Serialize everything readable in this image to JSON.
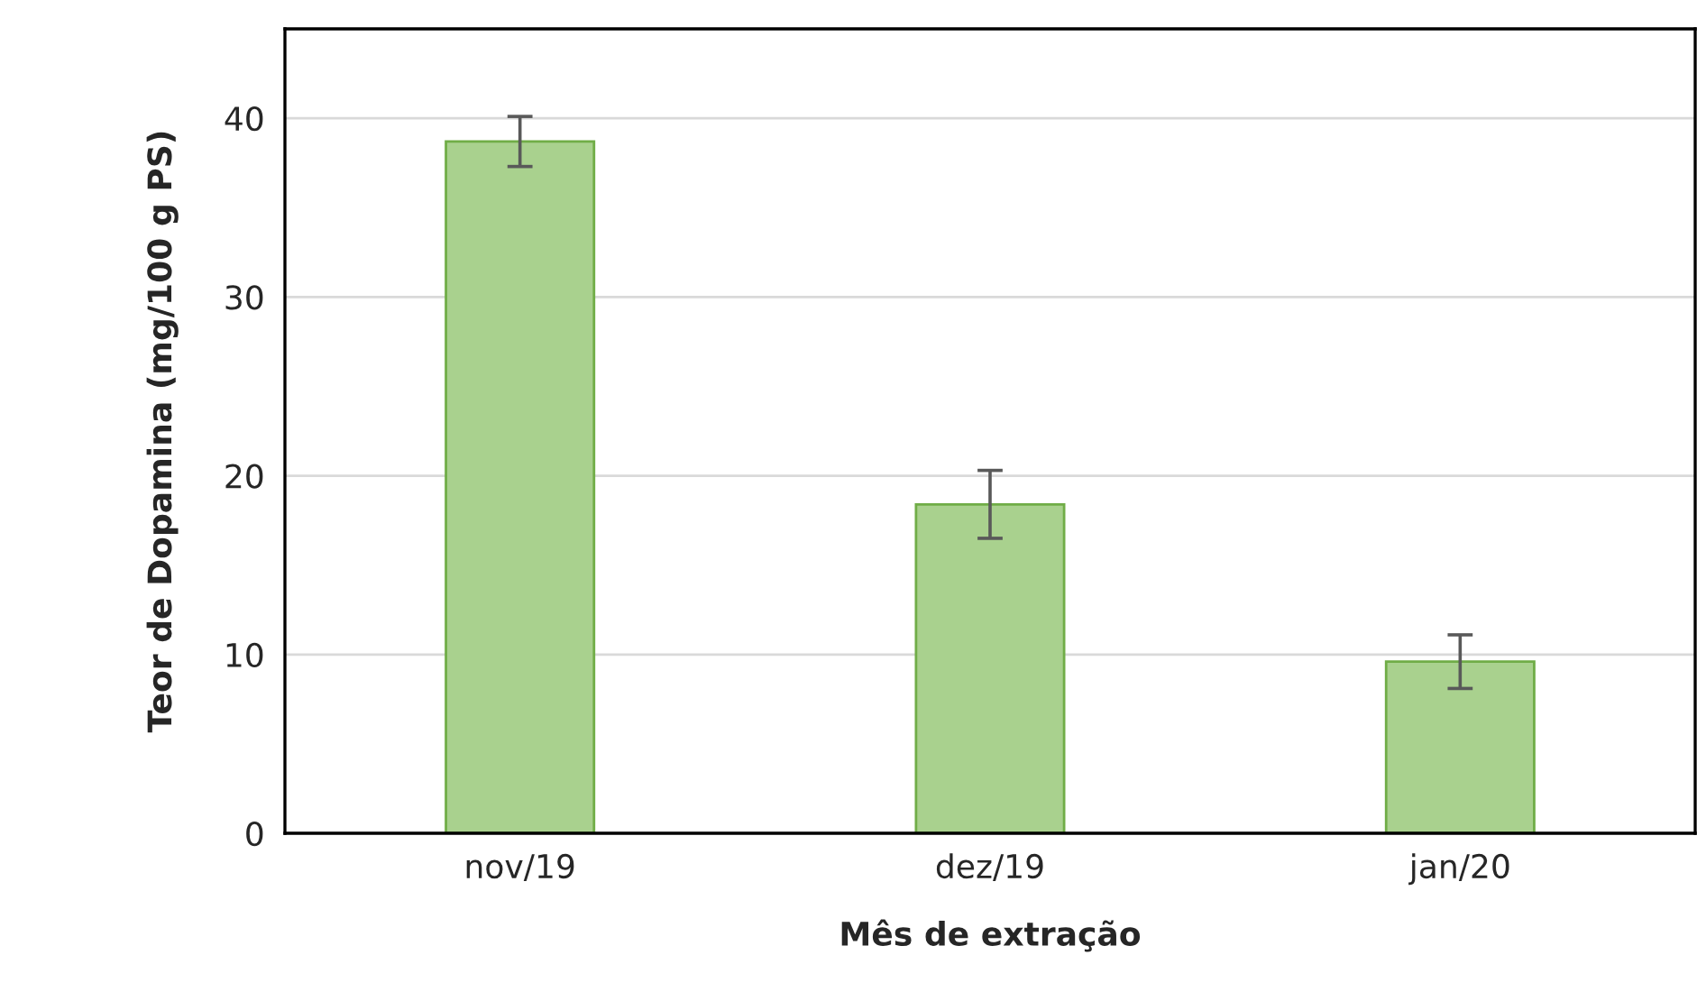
{
  "chart_data": {
    "type": "bar",
    "xlabel": "Mês de extração",
    "ylabel": "Teor de Dopamina (mg/100 g PS)",
    "categories": [
      "nov/19",
      "dez/19",
      "jan/20"
    ],
    "values": [
      38.7,
      18.4,
      9.6
    ],
    "errors": [
      1.4,
      1.9,
      1.5
    ],
    "color": "#a9d18e",
    "ylim": [
      0,
      45
    ],
    "yticks": [
      0,
      10,
      20,
      30,
      40
    ],
    "grid": "y"
  }
}
